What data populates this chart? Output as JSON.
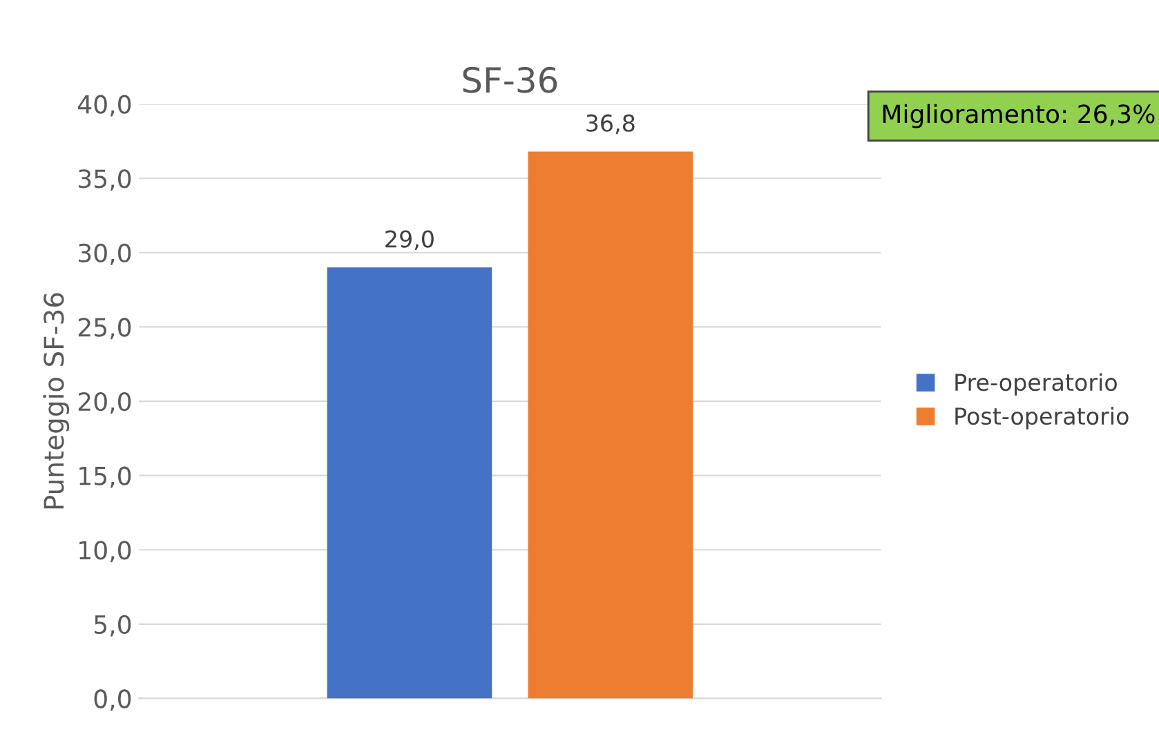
{
  "chart_data": {
    "type": "bar",
    "title": "SF-36",
    "ylabel": "Punteggio SF-36",
    "categories": [
      null
    ],
    "series": [
      {
        "name": "Pre-operatorio",
        "color": "#4472c4",
        "values": [
          29.0
        ],
        "value_labels": [
          "29,0"
        ]
      },
      {
        "name": "Post-operatorio",
        "color": "#ed7d31",
        "values": [
          36.8
        ],
        "value_labels": [
          "36,8"
        ]
      }
    ],
    "ylim": [
      0,
      40
    ],
    "yticks": [
      {
        "value": 0,
        "label": "0,0"
      },
      {
        "value": 5,
        "label": "5,0"
      },
      {
        "value": 10,
        "label": "10,0"
      },
      {
        "value": 15,
        "label": "15,0"
      },
      {
        "value": 20,
        "label": "20,0"
      },
      {
        "value": 25,
        "label": "25,0"
      },
      {
        "value": 30,
        "label": "30,0"
      },
      {
        "value": 35,
        "label": "35,0"
      },
      {
        "value": 40,
        "label": "40,0"
      }
    ],
    "grid": "y",
    "legend": "right",
    "annotations": [
      "Miglioramento: 26,3%"
    ]
  }
}
